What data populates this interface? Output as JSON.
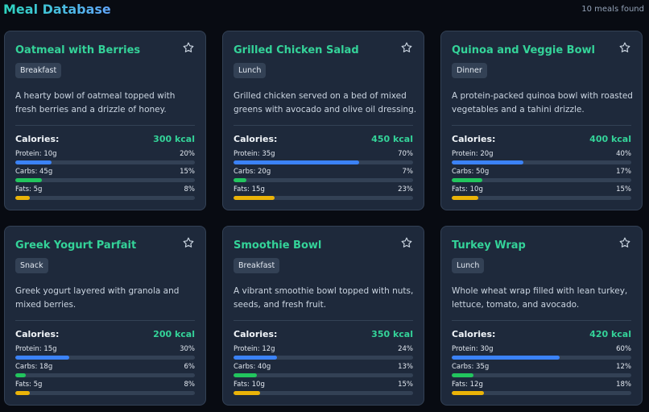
{
  "header": {
    "title": "Meal Database",
    "count": "10 meals found"
  },
  "meals": [
    {
      "name": "Oatmeal with Berries",
      "tag": "Breakfast",
      "description": "A hearty bowl of oatmeal topped with fresh berries and a drizzle of honey.",
      "calories_label": "Calories:",
      "calories": "300 kcal",
      "nutrients": [
        {
          "label": "Protein: 10g",
          "pct": {
            "value": 20,
            "label": "20%"
          }
        },
        {
          "label": "Carbs: 45g",
          "pct": {
            "value": 15,
            "label": "15%"
          }
        },
        {
          "label": "Fats: 5g",
          "pct": {
            "value": 8,
            "label": "8%"
          }
        }
      ]
    },
    {
      "name": "Grilled Chicken Salad",
      "tag": "Lunch",
      "description": "Grilled chicken served on a bed of mixed greens with avocado and olive oil dressing.",
      "calories_label": "Calories:",
      "calories": "450 kcal",
      "nutrients": [
        {
          "label": "Protein: 35g",
          "pct": {
            "value": 70,
            "label": "70%"
          }
        },
        {
          "label": "Carbs: 20g",
          "pct": {
            "value": 7,
            "label": "7%"
          }
        },
        {
          "label": "Fats: 15g",
          "pct": {
            "value": 23,
            "label": "23%"
          }
        }
      ]
    },
    {
      "name": "Quinoa and Veggie Bowl",
      "tag": "Dinner",
      "description": "A protein-packed quinoa bowl with roasted vegetables and a tahini drizzle.",
      "calories_label": "Calories:",
      "calories": "400 kcal",
      "nutrients": [
        {
          "label": "Protein: 20g",
          "pct": {
            "value": 40,
            "label": "40%"
          }
        },
        {
          "label": "Carbs: 50g",
          "pct": {
            "value": 17,
            "label": "17%"
          }
        },
        {
          "label": "Fats: 10g",
          "pct": {
            "value": 15,
            "label": "15%"
          }
        }
      ]
    },
    {
      "name": "Greek Yogurt Parfait",
      "tag": "Snack",
      "description": "Greek yogurt layered with granola and mixed berries.",
      "calories_label": "Calories:",
      "calories": "200 kcal",
      "nutrients": [
        {
          "label": "Protein: 15g",
          "pct": {
            "value": 30,
            "label": "30%"
          }
        },
        {
          "label": "Carbs: 18g",
          "pct": {
            "value": 6,
            "label": "6%"
          }
        },
        {
          "label": "Fats: 5g",
          "pct": {
            "value": 8,
            "label": "8%"
          }
        }
      ]
    },
    {
      "name": "Smoothie Bowl",
      "tag": "Breakfast",
      "description": "A vibrant smoothie bowl topped with nuts, seeds, and fresh fruit.",
      "calories_label": "Calories:",
      "calories": "350 kcal",
      "nutrients": [
        {
          "label": "Protein: 12g",
          "pct": {
            "value": 24,
            "label": "24%"
          }
        },
        {
          "label": "Carbs: 40g",
          "pct": {
            "value": 13,
            "label": "13%"
          }
        },
        {
          "label": "Fats: 10g",
          "pct": {
            "value": 15,
            "label": "15%"
          }
        }
      ]
    },
    {
      "name": "Turkey Wrap",
      "tag": "Lunch",
      "description": "Whole wheat wrap filled with lean turkey, lettuce, tomato, and avocado.",
      "calories_label": "Calories:",
      "calories": "420 kcal",
      "nutrients": [
        {
          "label": "Protein: 30g",
          "pct": {
            "value": 60,
            "label": "60%"
          }
        },
        {
          "label": "Carbs: 35g",
          "pct": {
            "value": 12,
            "label": "12%"
          }
        },
        {
          "label": "Fats: 12g",
          "pct": {
            "value": 18,
            "label": "18%"
          }
        }
      ]
    }
  ]
}
